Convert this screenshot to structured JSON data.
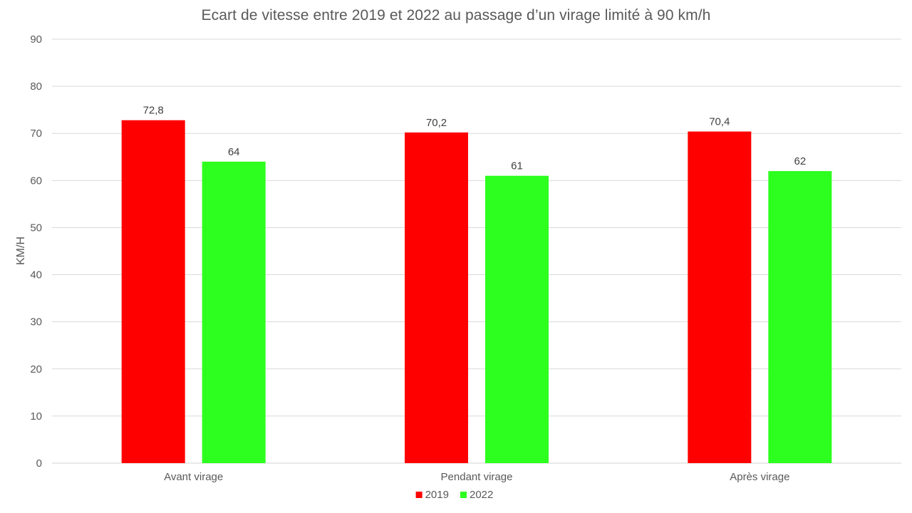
{
  "chart_data": {
    "type": "bar",
    "title": "Ecart de vitesse entre 2019 et 2022 au passage d’un virage limité à 90 km/h",
    "xlabel": "",
    "ylabel": "KM/H",
    "ylim": [
      0,
      90
    ],
    "yticks": [
      0,
      10,
      20,
      30,
      40,
      50,
      60,
      70,
      80,
      90
    ],
    "grid": true,
    "legend_position": "bottom",
    "categories": [
      "Avant virage",
      "Pendant virage",
      "Après virage"
    ],
    "series": [
      {
        "name": "2019",
        "color": "#ff0000",
        "values": [
          72.8,
          70.2,
          70.4
        ],
        "labels": [
          "72,8",
          "70,2",
          "70,4"
        ]
      },
      {
        "name": "2022",
        "color": "#2dff1e",
        "values": [
          64,
          61,
          62
        ],
        "labels": [
          "64",
          "61",
          "62"
        ]
      }
    ]
  }
}
